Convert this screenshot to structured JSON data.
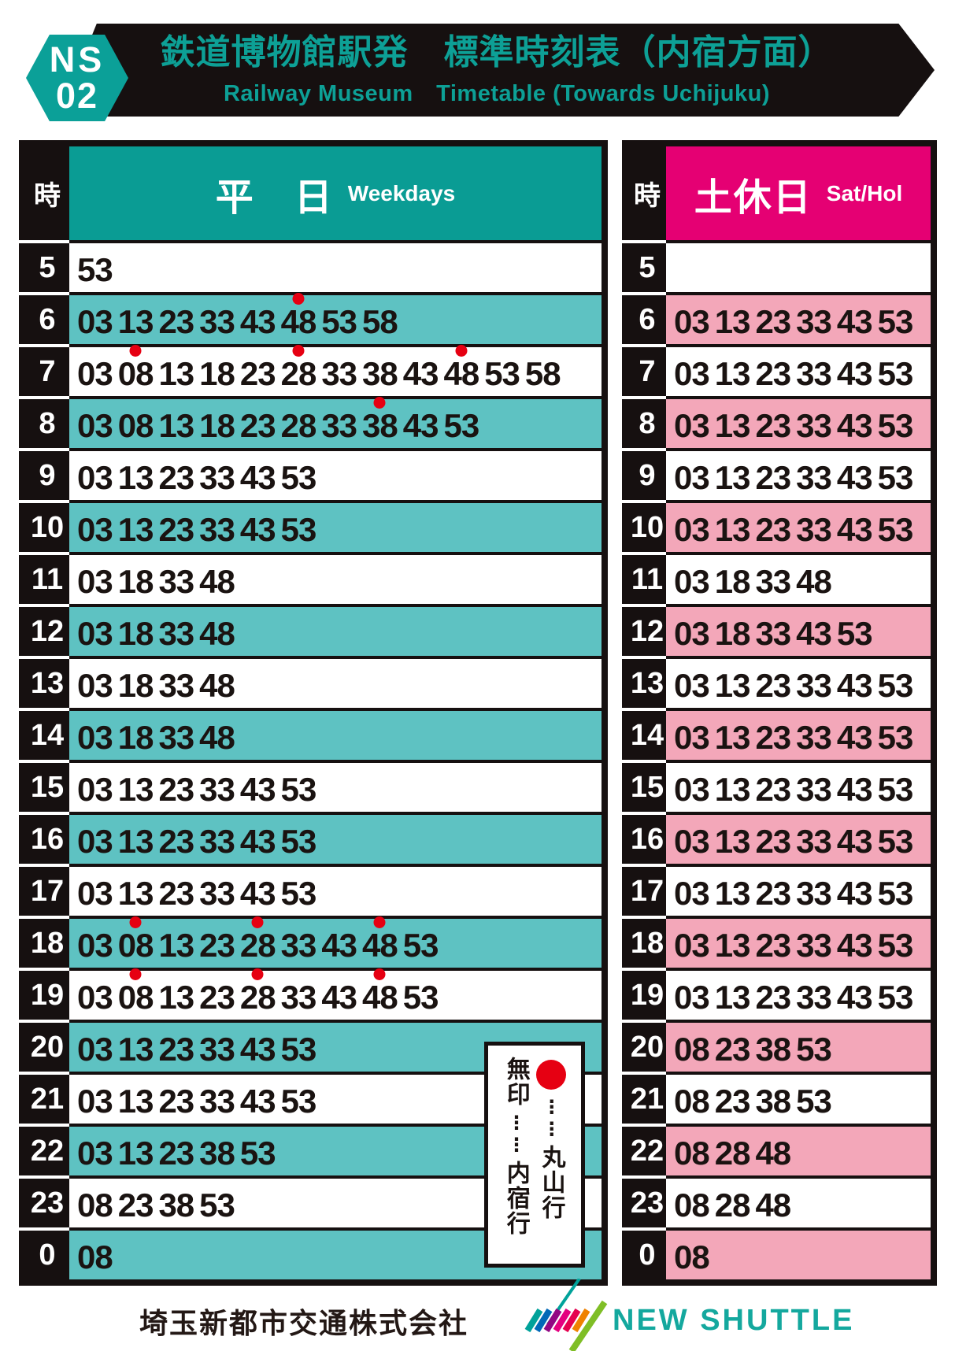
{
  "header": {
    "badge_line1": "NS",
    "badge_line2": "02",
    "title_jp": "鉄道博物館駅発　標準時刻表（内宿方面）",
    "title_en": "Railway Museum　Timetable (Towards Uchijuku)"
  },
  "colors": {
    "banner_bg": "#161010",
    "title_teal": "#0da096",
    "weekday_header": "#0a9c94",
    "weekday_row": "#5ec2c2",
    "holiday_header": "#e50073",
    "holiday_row": "#f3a7b9",
    "maruyama_dot": "#e60012",
    "brand_teal": "#14a89e"
  },
  "tables": {
    "weekday": {
      "hour_header": "時",
      "day_label_jp": "平　日",
      "day_label_en": "Weekdays",
      "rows": [
        {
          "hour": "5",
          "minutes": [
            "53"
          ]
        },
        {
          "hour": "6",
          "minutes": [
            "03",
            "13",
            "23",
            "33",
            "43",
            "48*",
            "53",
            "58"
          ]
        },
        {
          "hour": "7",
          "minutes": [
            "03",
            "08*",
            "13",
            "18",
            "23",
            "28*",
            "33",
            "38",
            "43",
            "48*",
            "53",
            "58"
          ]
        },
        {
          "hour": "8",
          "minutes": [
            "03",
            "08",
            "13",
            "18",
            "23",
            "28",
            "33",
            "38*",
            "43",
            "53"
          ]
        },
        {
          "hour": "9",
          "minutes": [
            "03",
            "13",
            "23",
            "33",
            "43",
            "53"
          ]
        },
        {
          "hour": "10",
          "minutes": [
            "03",
            "13",
            "23",
            "33",
            "43",
            "53"
          ]
        },
        {
          "hour": "11",
          "minutes": [
            "03",
            "18",
            "33",
            "48"
          ]
        },
        {
          "hour": "12",
          "minutes": [
            "03",
            "18",
            "33",
            "48"
          ]
        },
        {
          "hour": "13",
          "minutes": [
            "03",
            "18",
            "33",
            "48"
          ]
        },
        {
          "hour": "14",
          "minutes": [
            "03",
            "18",
            "33",
            "48"
          ]
        },
        {
          "hour": "15",
          "minutes": [
            "03",
            "13",
            "23",
            "33",
            "43",
            "53"
          ]
        },
        {
          "hour": "16",
          "minutes": [
            "03",
            "13",
            "23",
            "33",
            "43",
            "53"
          ]
        },
        {
          "hour": "17",
          "minutes": [
            "03",
            "13",
            "23",
            "33",
            "43",
            "53"
          ]
        },
        {
          "hour": "18",
          "minutes": [
            "03",
            "08*",
            "13",
            "23",
            "28*",
            "33",
            "43",
            "48*",
            "53"
          ]
        },
        {
          "hour": "19",
          "minutes": [
            "03",
            "08*",
            "13",
            "23",
            "28*",
            "33",
            "43",
            "48*",
            "53"
          ]
        },
        {
          "hour": "20",
          "minutes": [
            "03",
            "13",
            "23",
            "33",
            "43",
            "53"
          ]
        },
        {
          "hour": "21",
          "minutes": [
            "03",
            "13",
            "23",
            "33",
            "43",
            "53"
          ]
        },
        {
          "hour": "22",
          "minutes": [
            "03",
            "13",
            "23",
            "38",
            "53"
          ]
        },
        {
          "hour": "23",
          "minutes": [
            "08",
            "23",
            "38",
            "53"
          ]
        },
        {
          "hour": "0",
          "minutes": [
            "08"
          ]
        }
      ]
    },
    "holiday": {
      "hour_header": "時",
      "day_label_jp": "土休日",
      "day_label_en": "Sat/Hol",
      "rows": [
        {
          "hour": "5",
          "minutes": []
        },
        {
          "hour": "6",
          "minutes": [
            "03",
            "13",
            "23",
            "33",
            "43",
            "53"
          ]
        },
        {
          "hour": "7",
          "minutes": [
            "03",
            "13",
            "23",
            "33",
            "43",
            "53"
          ]
        },
        {
          "hour": "8",
          "minutes": [
            "03",
            "13",
            "23",
            "33",
            "43",
            "53"
          ]
        },
        {
          "hour": "9",
          "minutes": [
            "03",
            "13",
            "23",
            "33",
            "43",
            "53"
          ]
        },
        {
          "hour": "10",
          "minutes": [
            "03",
            "13",
            "23",
            "33",
            "43",
            "53"
          ]
        },
        {
          "hour": "11",
          "minutes": [
            "03",
            "18",
            "33",
            "48"
          ]
        },
        {
          "hour": "12",
          "minutes": [
            "03",
            "18",
            "33",
            "43",
            "53"
          ]
        },
        {
          "hour": "13",
          "minutes": [
            "03",
            "13",
            "23",
            "33",
            "43",
            "53"
          ]
        },
        {
          "hour": "14",
          "minutes": [
            "03",
            "13",
            "23",
            "33",
            "43",
            "53"
          ]
        },
        {
          "hour": "15",
          "minutes": [
            "03",
            "13",
            "23",
            "33",
            "43",
            "53"
          ]
        },
        {
          "hour": "16",
          "minutes": [
            "03",
            "13",
            "23",
            "33",
            "43",
            "53"
          ]
        },
        {
          "hour": "17",
          "minutes": [
            "03",
            "13",
            "23",
            "33",
            "43",
            "53"
          ]
        },
        {
          "hour": "18",
          "minutes": [
            "03",
            "13",
            "23",
            "33",
            "43",
            "53"
          ]
        },
        {
          "hour": "19",
          "minutes": [
            "03",
            "13",
            "23",
            "33",
            "43",
            "53"
          ]
        },
        {
          "hour": "20",
          "minutes": [
            "08",
            "23",
            "38",
            "53"
          ]
        },
        {
          "hour": "21",
          "minutes": [
            "08",
            "23",
            "38",
            "53"
          ]
        },
        {
          "hour": "22",
          "minutes": [
            "08",
            "28",
            "48"
          ]
        },
        {
          "hour": "23",
          "minutes": [
            "08",
            "28",
            "48"
          ]
        },
        {
          "hour": "0",
          "minutes": [
            "08"
          ]
        }
      ]
    }
  },
  "legend": {
    "unmarked_label": "無印",
    "unmarked_dest": "内宿行",
    "dot_dest": "丸山行",
    "dots": "⋮⋮"
  },
  "footer": {
    "company": "埼玉新都市交通株式会社",
    "brand": "NEW SHUTTLE"
  }
}
